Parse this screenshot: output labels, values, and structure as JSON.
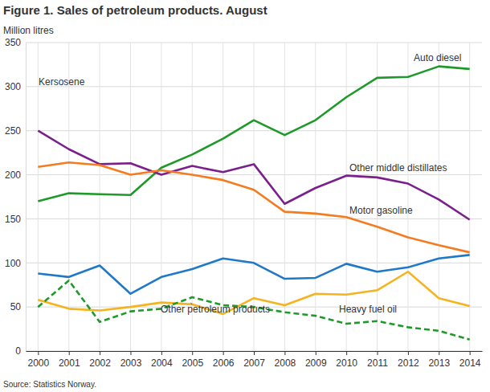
{
  "chart_data": {
    "type": "line",
    "title": "Figure 1. Sales of petroleum products. August",
    "y_label": "Million litres",
    "source": "Source: Statistics Norway.",
    "categories": [
      "2000",
      "2001",
      "2002",
      "2003",
      "2004",
      "2005",
      "2006",
      "2007",
      "2008",
      "2009",
      "2010",
      "2011",
      "2012",
      "2013",
      "2014"
    ],
    "series": [
      {
        "name": "Auto diesel",
        "color": "#1f9a2a",
        "line_style": "solid",
        "values": [
          170,
          179,
          178,
          177,
          208,
          223,
          241,
          262,
          245,
          262,
          288,
          310,
          311,
          323,
          320
        ]
      },
      {
        "name": "Other middle distillates",
        "color": "#7b1f8c",
        "line_style": "solid",
        "values": [
          250,
          229,
          212,
          213,
          200,
          210,
          203,
          212,
          167,
          185,
          199,
          197,
          190,
          172,
          149
        ]
      },
      {
        "name": "Motor gasoline",
        "color": "#f47b20",
        "line_style": "solid",
        "values": [
          209,
          214,
          211,
          200,
          205,
          200,
          194,
          183,
          158,
          156,
          152,
          141,
          129,
          120,
          112
        ]
      },
      {
        "name": "Kersosene",
        "color": "#1f78c8",
        "line_style": "solid",
        "values": [
          88,
          84,
          97,
          65,
          84,
          93,
          105,
          100,
          82,
          83,
          99,
          90,
          95,
          105,
          109
        ]
      },
      {
        "name": "Other petroleum products",
        "color": "#f5b31f",
        "line_style": "solid",
        "values": [
          58,
          48,
          46,
          50,
          55,
          53,
          42,
          60,
          52,
          65,
          64,
          69,
          90,
          60,
          51
        ]
      },
      {
        "name": "Heavy fuel oil",
        "color": "#1f9a2a",
        "line_style": "dashed",
        "values": [
          50,
          80,
          33,
          45,
          48,
          61,
          52,
          50,
          44,
          40,
          31,
          34,
          27,
          23,
          13
        ]
      }
    ],
    "ylim": [
      0,
      350
    ],
    "yticks": [
      0,
      50,
      100,
      150,
      200,
      250,
      300,
      350
    ],
    "grid": true
  }
}
